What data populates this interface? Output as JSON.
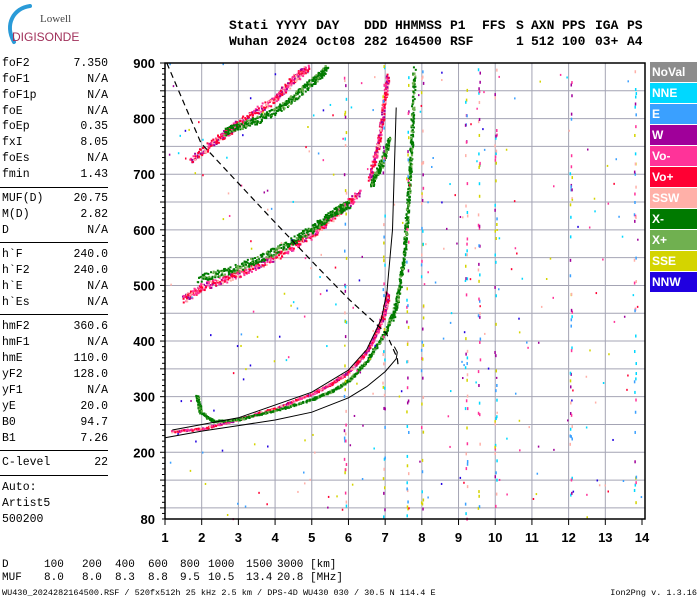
{
  "logo": {
    "line1": "Lowell",
    "line2": "DIGISONDE"
  },
  "header": {
    "columns": [
      {
        "label": "Stati",
        "value": "Wuhan"
      },
      {
        "label": "YYYY",
        "value": "2024"
      },
      {
        "label": "DAY",
        "value": "Oct08"
      },
      {
        "label": "DDD",
        "value": "282"
      },
      {
        "label": "HHMMSS",
        "value": "164500"
      },
      {
        "label": "P1",
        "value": "RSF"
      },
      {
        "label": "FFS",
        "value": ""
      },
      {
        "label": "S",
        "value": "1"
      },
      {
        "label": "AXN",
        "value": "512"
      },
      {
        "label": "PPS",
        "value": "100"
      },
      {
        "label": "IGA",
        "value": "03+"
      },
      {
        "label": "PS",
        "value": "A4"
      }
    ]
  },
  "params": [
    {
      "label": "foF2",
      "value": "7.350"
    },
    {
      "label": "foF1",
      "value": "N/A"
    },
    {
      "label": "foF1p",
      "value": "N/A"
    },
    {
      "label": "foE",
      "value": "N/A"
    },
    {
      "label": "foEp",
      "value": "0.35"
    },
    {
      "label": "fxI",
      "value": "8.05"
    },
    {
      "label": "foEs",
      "value": "N/A"
    },
    {
      "label": "fmin",
      "value": "1.43"
    },
    {
      "label": "MUF(D)",
      "value": "20.75"
    },
    {
      "label": "M(D)",
      "value": "2.82"
    },
    {
      "label": "D",
      "value": "N/A"
    },
    {
      "label": "h`F",
      "value": "240.0"
    },
    {
      "label": "h`F2",
      "value": "240.0"
    },
    {
      "label": "h`E",
      "value": "N/A"
    },
    {
      "label": "h`Es",
      "value": "N/A"
    },
    {
      "label": "hmF2",
      "value": "360.6"
    },
    {
      "label": "hmF1",
      "value": "N/A"
    },
    {
      "label": "hmE",
      "value": "110.0"
    },
    {
      "label": "yF2",
      "value": "128.0"
    },
    {
      "label": "yF1",
      "value": "N/A"
    },
    {
      "label": "yE",
      "value": "20.0"
    },
    {
      "label": "B0",
      "value": "94.7"
    },
    {
      "label": "B1",
      "value": "7.26"
    },
    {
      "label": "C-level",
      "value": "22"
    }
  ],
  "autoscaling": {
    "line1": "Auto:",
    "line2": "Artist5",
    "line3": "500200"
  },
  "legend": [
    {
      "label": "NoVal",
      "color": "#8c8c8c"
    },
    {
      "label": "NNE",
      "color": "#00d8ff"
    },
    {
      "label": "E",
      "color": "#3aa0ff"
    },
    {
      "label": "W",
      "color": "#a0009a"
    },
    {
      "label": "Vo-",
      "color": "#ff3399"
    },
    {
      "label": "Vo+",
      "color": "#ff0033"
    },
    {
      "label": "SSW",
      "color": "#ffb0a8"
    },
    {
      "label": "X-",
      "color": "#007a00"
    },
    {
      "label": "X+",
      "color": "#70b050"
    },
    {
      "label": "SSE",
      "color": "#d4d400"
    },
    {
      "label": "NNW",
      "color": "#2000e0"
    }
  ],
  "muf_table": {
    "d_label": "D",
    "d_values": [
      "100",
      "200",
      "400",
      "600",
      "800",
      "1000",
      "1500",
      "3000"
    ],
    "d_unit": "[km]",
    "muf_label": "MUF",
    "muf_values": [
      "8.0",
      "8.0",
      "8.3",
      "8.8",
      "9.5",
      "10.5",
      "13.4",
      "20.8"
    ],
    "muf_unit": "[MHz]"
  },
  "footer": {
    "left": "WU430_2024282164500.RSF / 520fx512h 25 kHz 2.5 km / DPS-4D WU430 030 / 30.5 N 114.4 E",
    "right": "Ion2Png v. 1.3.16"
  },
  "chart_data": {
    "type": "scatter",
    "xlim": [
      1,
      14
    ],
    "ylim": [
      80,
      900
    ],
    "xticks": [
      "1",
      "2",
      "3",
      "4",
      "5",
      "6",
      "7",
      "8",
      "9",
      "10",
      "11",
      "12",
      "13",
      "14"
    ],
    "yticks": [
      "80",
      "200",
      "300",
      "400",
      "500",
      "600",
      "700",
      "800",
      "900"
    ],
    "grid": true,
    "legend_position": "right",
    "echo_traces": [
      {
        "mode": "O",
        "points": [
          [
            1.2,
            240
          ],
          [
            2,
            245
          ],
          [
            3,
            262
          ],
          [
            4,
            282
          ],
          [
            5,
            308
          ],
          [
            5.5,
            325
          ],
          [
            6,
            348
          ],
          [
            6.5,
            385
          ],
          [
            6.8,
            425
          ],
          [
            7.0,
            470
          ],
          [
            7.05,
            490
          ]
        ]
      },
      {
        "mode": "X",
        "points": [
          [
            1.85,
            305
          ],
          [
            1.95,
            275
          ],
          [
            2.3,
            258
          ],
          [
            3,
            262
          ],
          [
            4,
            278
          ],
          [
            5,
            298
          ],
          [
            5.5,
            312
          ],
          [
            6,
            332
          ],
          [
            6.5,
            368
          ],
          [
            7,
            420
          ],
          [
            7.3,
            475
          ],
          [
            7.5,
            560
          ],
          [
            7.6,
            650
          ],
          [
            7.7,
            760
          ],
          [
            7.78,
            900
          ]
        ]
      },
      {
        "mode": "O",
        "points": [
          [
            1.5,
            485
          ],
          [
            2,
            505
          ],
          [
            3,
            530
          ],
          [
            4,
            560
          ],
          [
            5,
            600
          ],
          [
            5.7,
            640
          ],
          [
            6.3,
            675
          ]
        ]
      },
      {
        "mode": "X",
        "points": [
          [
            1.9,
            520
          ],
          [
            3,
            540
          ],
          [
            4,
            570
          ],
          [
            5,
            610
          ],
          [
            5.6,
            640
          ],
          [
            6.0,
            655
          ]
        ]
      },
      {
        "mode": "O",
        "points": [
          [
            6.55,
            700
          ],
          [
            6.8,
            760
          ],
          [
            6.95,
            830
          ],
          [
            7.05,
            885
          ]
        ]
      },
      {
        "mode": "X",
        "points": [
          [
            6.6,
            690
          ],
          [
            6.9,
            730
          ],
          [
            7.1,
            770
          ]
        ]
      },
      {
        "mode": "O",
        "points": [
          [
            1.7,
            735
          ],
          [
            2.5,
            775
          ],
          [
            3,
            800
          ],
          [
            4,
            845
          ],
          [
            4.5,
            880
          ],
          [
            4.9,
            900
          ]
        ]
      },
      {
        "mode": "X",
        "points": [
          [
            2.6,
            785
          ],
          [
            3.5,
            805
          ],
          [
            4.3,
            835
          ],
          [
            5,
            875
          ],
          [
            5.4,
            900
          ]
        ]
      }
    ],
    "fitted_o_trace": [
      [
        1.2,
        240
      ],
      [
        3,
        262
      ],
      [
        5,
        308
      ],
      [
        6,
        348
      ],
      [
        6.5,
        385
      ],
      [
        6.9,
        440
      ],
      [
        7.05,
        490
      ],
      [
        7.2,
        600
      ],
      [
        7.3,
        820
      ]
    ],
    "true_height_profile": [
      [
        1,
        226
      ],
      [
        2,
        238
      ],
      [
        3,
        248
      ],
      [
        4,
        258
      ],
      [
        5,
        272
      ],
      [
        6,
        298
      ],
      [
        6.5,
        318
      ],
      [
        7.0,
        345
      ],
      [
        7.3,
        368
      ],
      [
        7.33,
        380
      ],
      [
        7.25,
        390
      ]
    ],
    "dashed_curve": [
      [
        1.05,
        900
      ],
      [
        1.98,
        756
      ],
      [
        3.86,
        623
      ],
      [
        5.2,
        530
      ],
      [
        6.03,
        474
      ],
      [
        7.03,
        414
      ],
      [
        7.33,
        369
      ],
      [
        7.36,
        352
      ]
    ],
    "interference_freqs": [
      5.9,
      6.95,
      7.6,
      8.0,
      9.2,
      9.55,
      10.0,
      12.05,
      13.8
    ]
  }
}
